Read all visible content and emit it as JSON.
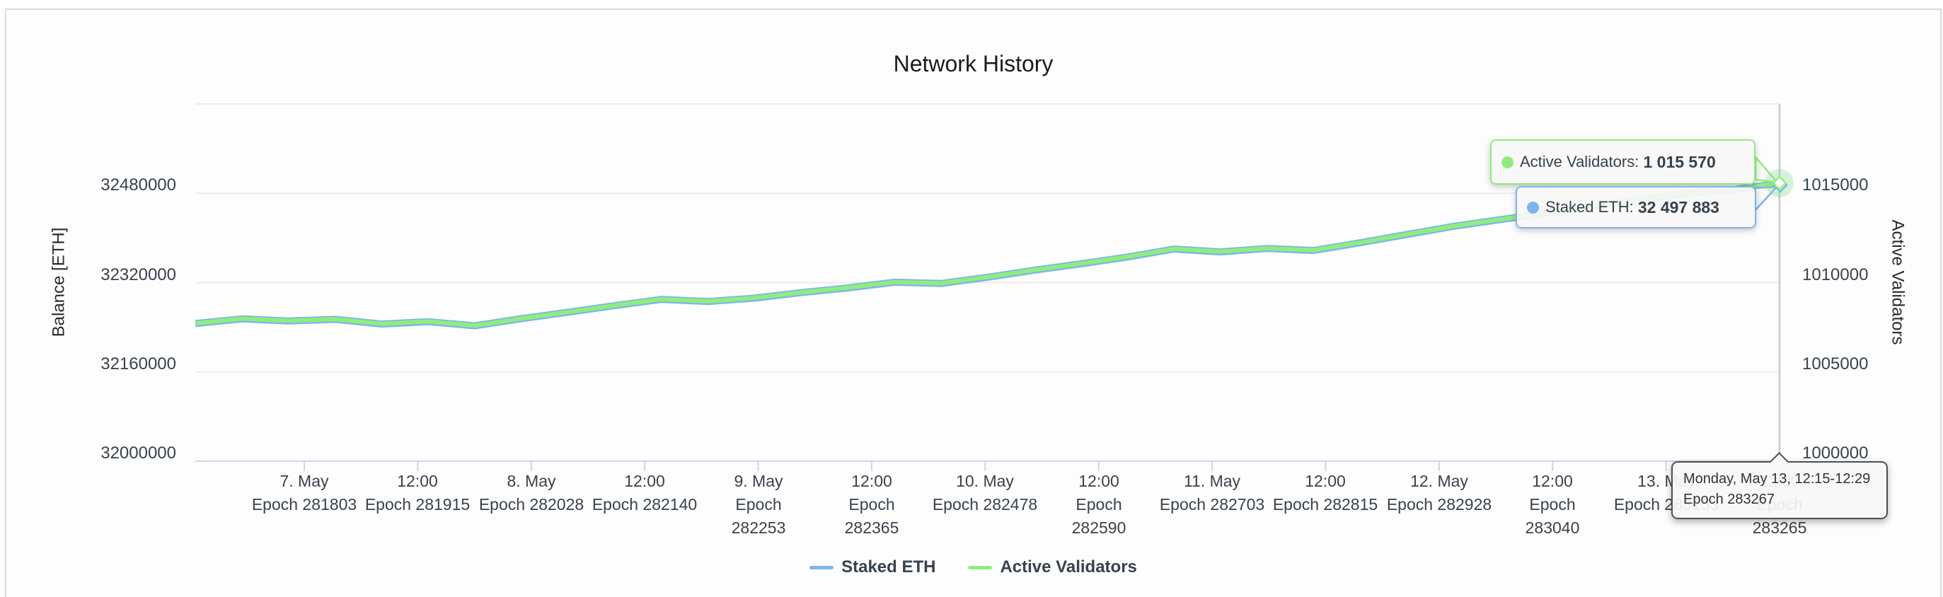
{
  "title": "Network History",
  "colors": {
    "staked_blue": "#7cb5ec",
    "validators_green": "#90ed7d",
    "grid": "#ececec",
    "axis_line": "#ccd6eb",
    "crosshair": "#c9c9c9",
    "tick_text": "#39424c",
    "halo": "rgba(125,214,137,0.3)"
  },
  "y_axis_left": {
    "title": "Balance [ETH]",
    "tick_labels": [
      "32480000",
      "32320000",
      "32160000",
      "32000000"
    ],
    "tick_values": [
      32480000,
      32320000,
      32160000,
      32000000
    ]
  },
  "y_axis_right": {
    "title": "Active Validators",
    "tick_labels": [
      "1015000",
      "1010000",
      "1005000",
      "1000000"
    ],
    "tick_values": [
      1015000,
      1010000,
      1005000,
      1000000
    ]
  },
  "x_axis": {
    "tick_labels": [
      [
        "7. May",
        "Epoch 281803"
      ],
      [
        "12:00",
        "Epoch 281915"
      ],
      [
        "8. May",
        "Epoch 282028"
      ],
      [
        "12:00",
        "Epoch 282140"
      ],
      [
        "9. May",
        "Epoch",
        "282253"
      ],
      [
        "12:00",
        "Epoch",
        "282365"
      ],
      [
        "10. May",
        "Epoch 282478"
      ],
      [
        "12:00",
        "Epoch",
        "282590"
      ],
      [
        "11. May",
        "Epoch 282703"
      ],
      [
        "12:00",
        "Epoch 282815"
      ],
      [
        "12. May",
        "Epoch 282928"
      ],
      [
        "12:00",
        "Epoch",
        "283040"
      ],
      [
        "13. May",
        "Epoch 283153"
      ],
      [
        "12:00",
        "Epoch",
        "283265"
      ]
    ]
  },
  "legend": [
    {
      "label": "Staked ETH",
      "color": "#7cb5ec"
    },
    {
      "label": "Active Validators",
      "color": "#90ed7d"
    }
  ],
  "tooltips": {
    "validators": {
      "label": "Active Validators:",
      "value": "1 015 570",
      "color": "#90ed7d"
    },
    "staked": {
      "label": "Staked ETH:",
      "value": "32 497 883",
      "color": "#7cb5ec"
    },
    "xaxis": {
      "line1": "Monday, May 13, 12:15-12:29",
      "line2": "Epoch 283267"
    }
  },
  "chart_data": {
    "type": "line",
    "title": "Network History",
    "x": {
      "unit": "epoch",
      "range": [
        281695,
        283267
      ],
      "tick_epochs": [
        281803,
        281915,
        282028,
        282140,
        282253,
        282365,
        282478,
        282590,
        282703,
        282815,
        282928,
        283040,
        283153,
        283265
      ]
    },
    "y_left": {
      "label": "Balance [ETH]",
      "min": 32000000,
      "max": 32640000,
      "grid_step": 160000
    },
    "y_right": {
      "label": "Active Validators",
      "min": 1000000,
      "max": 1020000,
      "grid_step": 5000
    },
    "legend_position": "bottom",
    "grid": true,
    "series": [
      {
        "name": "Staked ETH",
        "axis": "left",
        "color": "#7cb5ec",
        "values": [
          32246683,
          32255003,
          32251163,
          32254043,
          32245723,
          32249883,
          32242523,
          32255323,
          32266843,
          32278683,
          32289883,
          32286043,
          32292123,
          32302043,
          32310363,
          32320603,
          32318363,
          32329563,
          32342043,
          32353563,
          32365723,
          32380123,
          32375003,
          32381083,
          32377563,
          32391323,
          32406043,
          32420763,
          32432603,
          32444443,
          32456603,
          32468443,
          32480283,
          32486363,
          32497883
        ]
      },
      {
        "name": "Active Validators",
        "axis": "right",
        "color": "#90ed7d",
        "values": [
          1007720,
          1007980,
          1007860,
          1007950,
          1007690,
          1007820,
          1007590,
          1007990,
          1008350,
          1008720,
          1009070,
          1008950,
          1009140,
          1009450,
          1009710,
          1010030,
          1009960,
          1010310,
          1010700,
          1011060,
          1011440,
          1011890,
          1011730,
          1011920,
          1011810,
          1012240,
          1012700,
          1013160,
          1013530,
          1013900,
          1014280,
          1014650,
          1015020,
          1015210,
          1015570
        ]
      }
    ],
    "hover_point": {
      "epoch": 283267,
      "time_label": "Monday, May 13, 12:15-12:29",
      "active_validators": 1015570,
      "staked_eth": 32497883
    }
  }
}
